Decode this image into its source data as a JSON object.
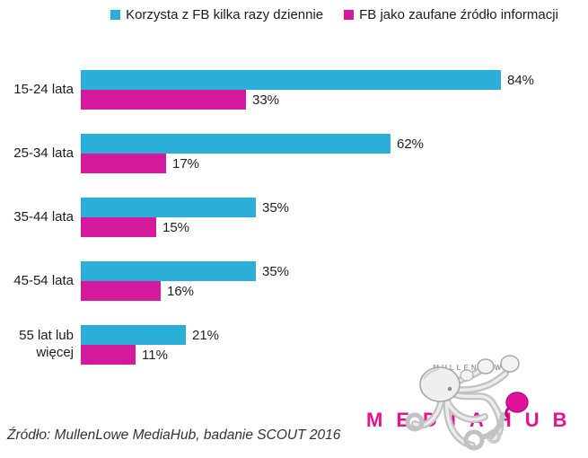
{
  "legend": {
    "items": [
      {
        "label": "Korzysta z FB kilka razy dziennie",
        "color": "#2BAED8"
      },
      {
        "label": "FB jako zaufane źródło informacji",
        "color": "#D4199C"
      }
    ]
  },
  "chart_data": {
    "type": "bar",
    "orientation": "horizontal",
    "categories": [
      "15-24 lata",
      "25-34 lata",
      "35-44 lata",
      "45-54 lata",
      "55 lat lub więcej"
    ],
    "series": [
      {
        "name": "Korzysta z FB kilka razy dziennie",
        "color": "#2BAED8",
        "values": [
          84,
          62,
          35,
          35,
          21
        ]
      },
      {
        "name": "FB jako zaufane źródło informacji",
        "color": "#D4199C",
        "values": [
          33,
          17,
          15,
          16,
          11
        ]
      }
    ],
    "value_labels": [
      [
        "84%",
        "33%"
      ],
      [
        "62%",
        "17%"
      ],
      [
        "35%",
        "15%"
      ],
      [
        "35%",
        "16%"
      ],
      [
        "21%",
        "11%"
      ]
    ],
    "value_suffix": "%",
    "xlim": [
      0,
      100
    ],
    "grid": false,
    "legend_position": "top"
  },
  "source": {
    "text": "Źródło: MullenLowe MediaHub, badanie SCOUT 2016"
  },
  "logo": {
    "brand": "MULLENLOWE",
    "product": "MEDIAHUB",
    "product_color": "#E8128C",
    "icon": "octopus-with-boxing-gloves"
  }
}
